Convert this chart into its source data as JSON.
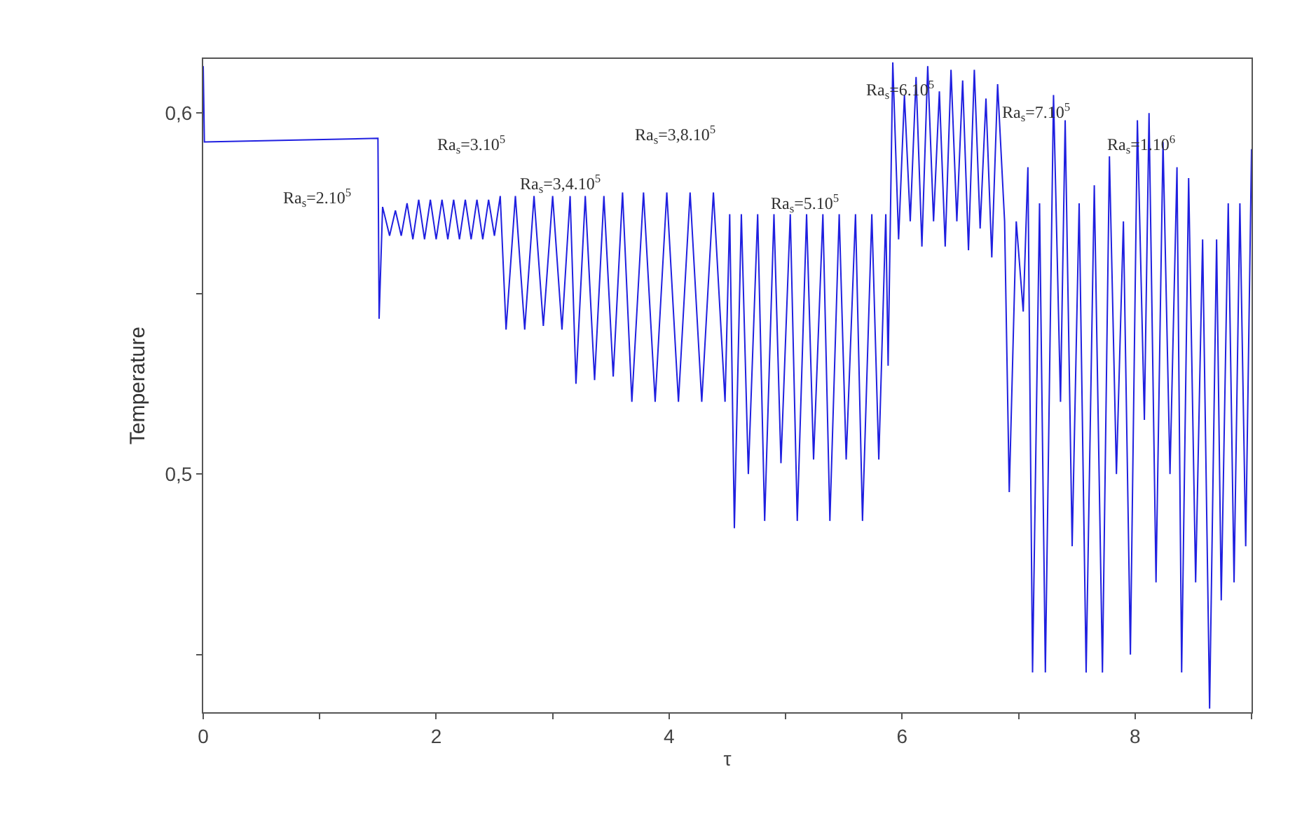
{
  "chart_data": {
    "type": "line",
    "xlabel": "τ",
    "ylabel": "Temperature",
    "xlim": [
      0,
      9
    ],
    "ylim": [
      0.434,
      0.615
    ],
    "xticks": [
      0,
      {
        "value": 1,
        "label": null
      },
      2,
      {
        "value": 3,
        "label": null
      },
      4,
      {
        "value": 5,
        "label": null
      },
      6,
      {
        "value": 7,
        "label": null
      },
      8,
      {
        "value": 9,
        "label": null
      }
    ],
    "yticks": [
      {
        "value": 0.45,
        "label": null
      },
      {
        "value": 0.5,
        "label": "0,5"
      },
      {
        "value": 0.55,
        "label": null
      },
      {
        "value": 0.6,
        "label": "0,6"
      }
    ],
    "marker": "none",
    "line_style": "solid",
    "series": [
      {
        "color": "#1f1fe0",
        "x": [
          0,
          0.01,
          1.5,
          1.51,
          1.54,
          1.6,
          1.65,
          1.7,
          1.75,
          1.8,
          1.85,
          1.9,
          1.95,
          2.0,
          2.05,
          2.1,
          2.15,
          2.2,
          2.25,
          2.3,
          2.35,
          2.4,
          2.45,
          2.5,
          2.55,
          2.6,
          2.68,
          2.76,
          2.84,
          2.92,
          3.0,
          3.08,
          3.15,
          3.2,
          3.28,
          3.36,
          3.44,
          3.52,
          3.6,
          3.68,
          3.78,
          3.88,
          3.98,
          4.08,
          4.18,
          4.28,
          4.38,
          4.48,
          4.52,
          4.56,
          4.62,
          4.68,
          4.76,
          4.82,
          4.9,
          4.96,
          5.04,
          5.1,
          5.18,
          5.24,
          5.32,
          5.38,
          5.46,
          5.52,
          5.6,
          5.66,
          5.74,
          5.8,
          5.86,
          5.88,
          5.92,
          5.97,
          6.02,
          6.07,
          6.12,
          6.17,
          6.22,
          6.27,
          6.32,
          6.37,
          6.42,
          6.47,
          6.52,
          6.57,
          6.62,
          6.67,
          6.72,
          6.77,
          6.82,
          6.88,
          6.92,
          6.98,
          7.04,
          7.08,
          7.12,
          7.18,
          7.23,
          7.3,
          7.36,
          7.4,
          7.46,
          7.52,
          7.58,
          7.65,
          7.72,
          7.78,
          7.84,
          7.9,
          7.96,
          8.02,
          8.08,
          8.12,
          8.18,
          8.24,
          8.3,
          8.36,
          8.4,
          8.46,
          8.52,
          8.58,
          8.64,
          8.7,
          8.74,
          8.8,
          8.85,
          8.9,
          8.95,
          9.0
        ],
        "values": [
          0.613,
          0.592,
          0.593,
          0.543,
          0.574,
          0.566,
          0.573,
          0.566,
          0.575,
          0.565,
          0.576,
          0.565,
          0.576,
          0.565,
          0.576,
          0.565,
          0.576,
          0.565,
          0.576,
          0.565,
          0.576,
          0.565,
          0.576,
          0.566,
          0.577,
          0.54,
          0.577,
          0.54,
          0.577,
          0.541,
          0.577,
          0.54,
          0.577,
          0.525,
          0.577,
          0.526,
          0.577,
          0.527,
          0.578,
          0.52,
          0.578,
          0.52,
          0.578,
          0.52,
          0.578,
          0.52,
          0.578,
          0.52,
          0.572,
          0.485,
          0.572,
          0.5,
          0.572,
          0.487,
          0.572,
          0.503,
          0.572,
          0.487,
          0.572,
          0.504,
          0.572,
          0.487,
          0.572,
          0.504,
          0.572,
          0.487,
          0.572,
          0.504,
          0.572,
          0.53,
          0.614,
          0.565,
          0.605,
          0.57,
          0.61,
          0.563,
          0.613,
          0.57,
          0.606,
          0.563,
          0.612,
          0.57,
          0.609,
          0.562,
          0.612,
          0.568,
          0.604,
          0.56,
          0.608,
          0.57,
          0.495,
          0.57,
          0.545,
          0.585,
          0.445,
          0.575,
          0.445,
          0.605,
          0.52,
          0.598,
          0.48,
          0.575,
          0.445,
          0.58,
          0.445,
          0.588,
          0.5,
          0.57,
          0.45,
          0.598,
          0.515,
          0.6,
          0.47,
          0.592,
          0.5,
          0.585,
          0.445,
          0.582,
          0.47,
          0.565,
          0.435,
          0.565,
          0.465,
          0.575,
          0.47,
          0.575,
          0.48,
          0.59
        ]
      }
    ],
    "annotations": [
      "Ra$_{s}$=2.10$^{5}$",
      "Ra$_{s}$=3.10$^{5}$",
      "Ra$_{s}$=3,4.10$^{5}$",
      "Ra$_{s}$=3,8.10$^{5}$",
      "Ra$_{s}$=5.10$^{5}$",
      "Ra$_{s}$=6.10$^{5}$",
      "Ra$_{s}$=7.10$^{5}$",
      "Ra$_{s}$=1.10$^{6}$"
    ]
  }
}
